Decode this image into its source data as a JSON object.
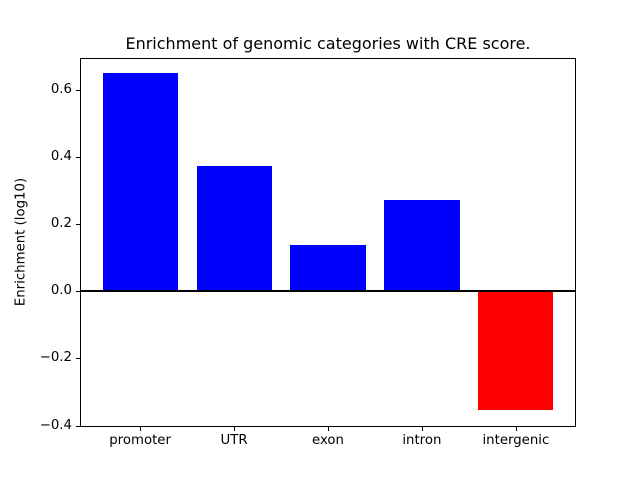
{
  "chart_data": {
    "type": "bar",
    "title": "Enrichment of genomic categories with CRE score.",
    "xlabel": "",
    "ylabel": "Enrichment (log10)",
    "categories": [
      "promoter",
      "UTR",
      "exon",
      "intron",
      "intergenic"
    ],
    "values": [
      0.648,
      0.374,
      0.137,
      0.272,
      -0.354
    ],
    "bar_colors": [
      "#0000ff",
      "#0000ff",
      "#0000ff",
      "#0000ff",
      "#ff0000"
    ],
    "positive_color": "#0000ff",
    "negative_color": "#ff0000",
    "bar_width": 0.8,
    "xlim": [
      -0.64,
      4.64
    ],
    "ylim": [
      -0.405,
      0.695
    ],
    "yticks": [
      -0.4,
      -0.2,
      0.0,
      0.2,
      0.4,
      0.6
    ],
    "ytick_labels": [
      "−0.4",
      "−0.2",
      "0.0",
      "0.2",
      "0.4",
      "0.6"
    ],
    "zero_line": true,
    "grid": false,
    "legend": "none",
    "axis_color": "#000000",
    "background_color": "#ffffff"
  }
}
